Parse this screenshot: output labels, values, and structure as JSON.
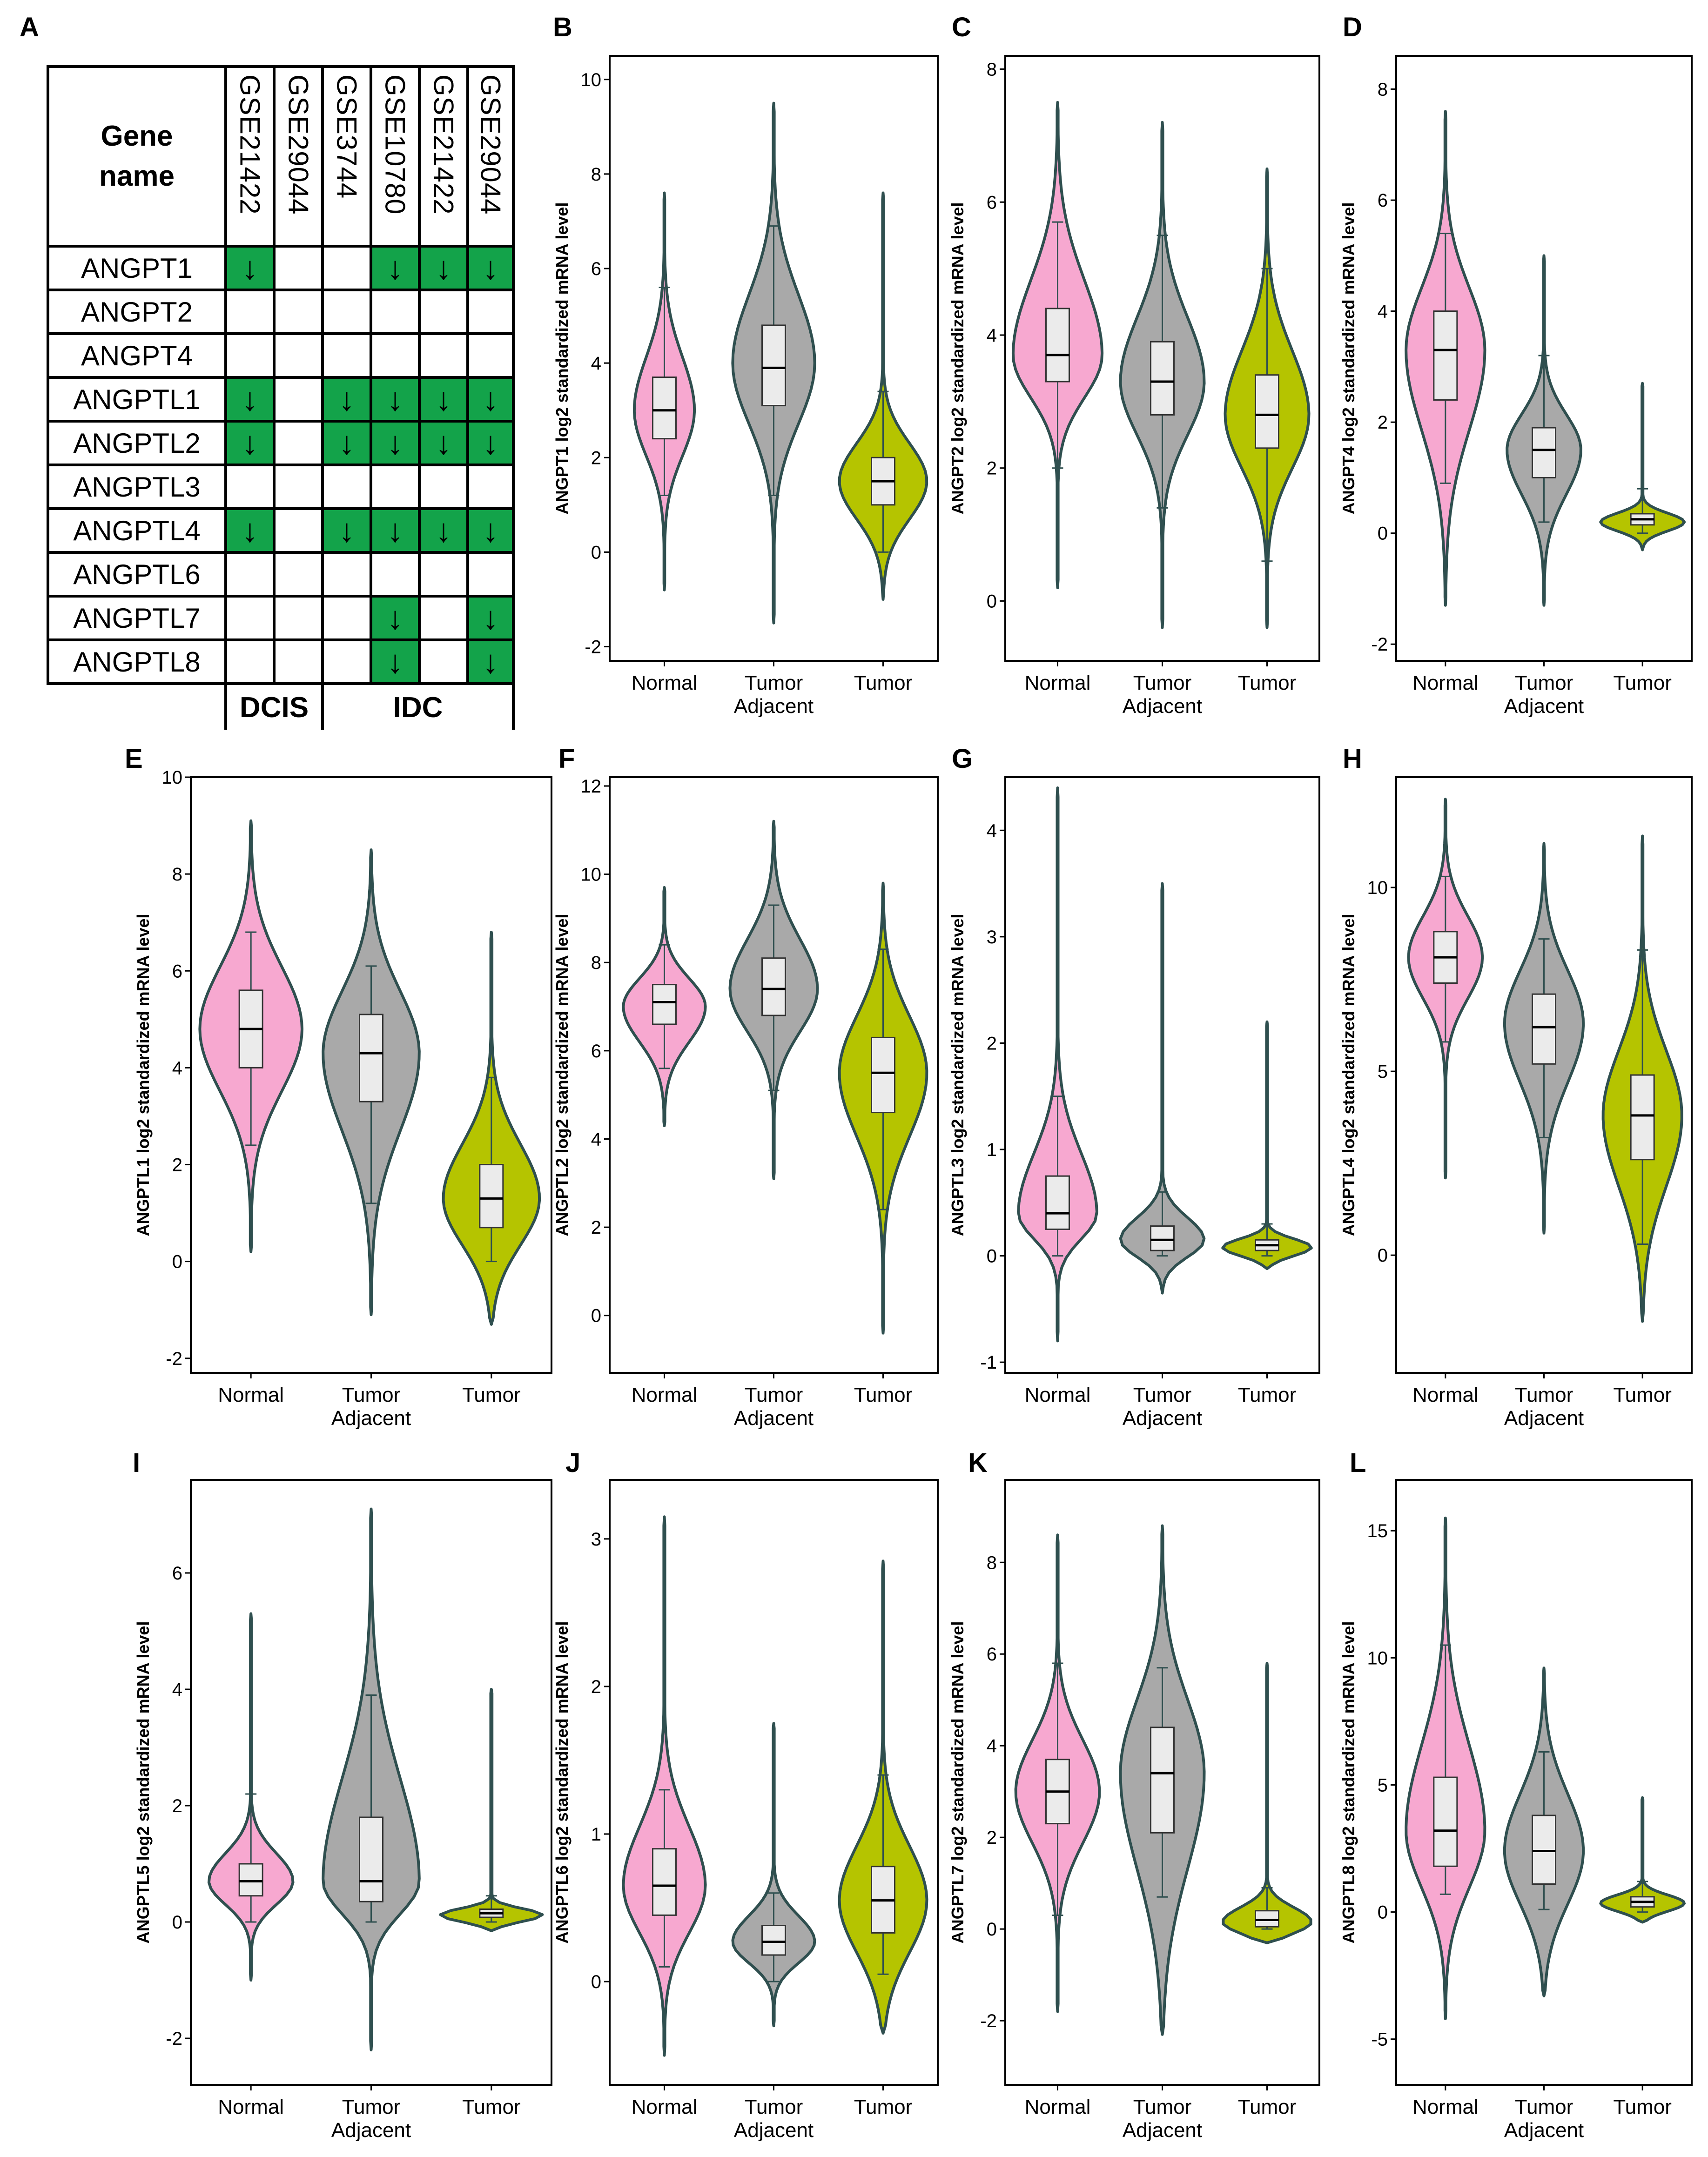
{
  "panel_a": {
    "label": "A",
    "gene_header": "Gene\nname",
    "datasets": [
      "GSE21422",
      "GSE29044",
      "GSE3744",
      "GSE10780",
      "GSE21422",
      "GSE29044"
    ],
    "groups": [
      {
        "label": "DCIS",
        "span": 2
      },
      {
        "label": "IDC",
        "span": 4
      }
    ],
    "arrow_symbol": "↓",
    "highlight_color": "#13a34a",
    "rows": [
      {
        "gene": "ANGPT1",
        "down": [
          true,
          false,
          false,
          true,
          true,
          true
        ]
      },
      {
        "gene": "ANGPT2",
        "down": [
          false,
          false,
          false,
          false,
          false,
          false
        ]
      },
      {
        "gene": "ANGPT4",
        "down": [
          false,
          false,
          false,
          false,
          false,
          false
        ]
      },
      {
        "gene": "ANGPTL1",
        "down": [
          true,
          false,
          true,
          true,
          true,
          true
        ]
      },
      {
        "gene": "ANGPTL2",
        "down": [
          true,
          false,
          true,
          true,
          true,
          true
        ]
      },
      {
        "gene": "ANGPTL3",
        "down": [
          false,
          false,
          false,
          false,
          false,
          false
        ]
      },
      {
        "gene": "ANGPTL4",
        "down": [
          true,
          false,
          true,
          true,
          true,
          true
        ]
      },
      {
        "gene": "ANGPTL6",
        "down": [
          false,
          false,
          false,
          false,
          false,
          false
        ]
      },
      {
        "gene": "ANGPTL7",
        "down": [
          false,
          false,
          false,
          true,
          false,
          true
        ]
      },
      {
        "gene": "ANGPTL8",
        "down": [
          false,
          false,
          false,
          true,
          false,
          true
        ]
      }
    ]
  },
  "colors": {
    "Normal": "#f7a8d0",
    "Tumor Adjacent": "#a9a9a9",
    "Tumor": "#b5c400",
    "outline": "#2f4f4f",
    "box_fill": "#ebebeb"
  },
  "chart_data": [
    {
      "label": "B",
      "type": "violin",
      "ylabel": "ANGPT1  log2 standardized mRNA level",
      "ylim": [
        -2.3,
        10.5
      ],
      "ticks": [
        -2,
        0,
        2,
        4,
        6,
        8,
        10
      ],
      "categories": [
        {
          "line1": "Normal",
          "line2": ""
        },
        {
          "line1": "Tumor",
          "line2": "Adjacent"
        },
        {
          "line1": "Tumor",
          "line2": ""
        }
      ],
      "series": [
        {
          "name": "Normal",
          "min": -0.8,
          "max": 7.6,
          "q1": 2.4,
          "median": 3.0,
          "q3": 3.7,
          "wlo": 1.2,
          "whi": 5.6,
          "peak": 3.0,
          "width": 0.55
        },
        {
          "name": "Tumor Adjacent",
          "min": -1.5,
          "max": 9.5,
          "q1": 3.1,
          "median": 3.9,
          "q3": 4.8,
          "wlo": 1.2,
          "whi": 6.9,
          "peak": 4.0,
          "width": 0.75
        },
        {
          "name": "Tumor",
          "min": -1.0,
          "max": 7.6,
          "q1": 1.0,
          "median": 1.5,
          "q3": 2.0,
          "wlo": 0.0,
          "whi": 3.4,
          "peak": 1.5,
          "width": 0.8
        }
      ]
    },
    {
      "label": "C",
      "type": "violin",
      "ylabel": "ANGPT2  log2 standardized mRNA level",
      "ylim": [
        -0.9,
        8.2
      ],
      "ticks": [
        0,
        2,
        4,
        6,
        8
      ],
      "categories": [
        {
          "line1": "Normal",
          "line2": ""
        },
        {
          "line1": "Tumor",
          "line2": "Adjacent"
        },
        {
          "line1": "Tumor",
          "line2": ""
        }
      ],
      "series": [
        {
          "name": "Normal",
          "min": 0.2,
          "max": 7.5,
          "q1": 3.3,
          "median": 3.7,
          "q3": 4.4,
          "wlo": 2.0,
          "whi": 5.7,
          "peak": 3.7,
          "width": 0.85
        },
        {
          "name": "Tumor Adjacent",
          "min": -0.4,
          "max": 7.2,
          "q1": 2.8,
          "median": 3.3,
          "q3": 3.9,
          "wlo": 1.4,
          "whi": 5.5,
          "peak": 3.3,
          "width": 0.8
        },
        {
          "name": "Tumor",
          "min": -0.4,
          "max": 6.5,
          "q1": 2.3,
          "median": 2.8,
          "q3": 3.4,
          "wlo": 0.6,
          "whi": 5.0,
          "peak": 2.8,
          "width": 0.8
        }
      ]
    },
    {
      "label": "D",
      "type": "violin",
      "ylabel": "ANGPT4  log2 standardized mRNA level",
      "ylim": [
        -2.3,
        8.6
      ],
      "ticks": [
        -2,
        0,
        2,
        4,
        6,
        8
      ],
      "categories": [
        {
          "line1": "Normal",
          "line2": ""
        },
        {
          "line1": "Tumor",
          "line2": "Adjacent"
        },
        {
          "line1": "Tumor",
          "line2": ""
        }
      ],
      "series": [
        {
          "name": "Normal",
          "min": -1.3,
          "max": 7.6,
          "q1": 2.4,
          "median": 3.3,
          "q3": 4.0,
          "wlo": 0.9,
          "whi": 5.4,
          "peak": 3.3,
          "width": 0.8
        },
        {
          "name": "Tumor Adjacent",
          "min": -1.3,
          "max": 5.0,
          "q1": 1.0,
          "median": 1.5,
          "q3": 1.9,
          "wlo": 0.2,
          "whi": 3.2,
          "peak": 1.5,
          "width": 0.75
        },
        {
          "name": "Tumor",
          "min": -0.3,
          "max": 2.7,
          "q1": 0.15,
          "median": 0.25,
          "q3": 0.35,
          "wlo": 0.0,
          "whi": 0.8,
          "peak": 0.2,
          "width": 0.85
        }
      ]
    },
    {
      "label": "E",
      "type": "violin",
      "ylabel": "ANGPTL1  log2 standardized mRNA level",
      "ylim": [
        -2.3,
        10.0
      ],
      "ticks": [
        -2,
        0,
        2,
        4,
        6,
        8,
        10
      ],
      "categories": [
        {
          "line1": "Normal",
          "line2": ""
        },
        {
          "line1": "Tumor",
          "line2": "Adjacent"
        },
        {
          "line1": "Tumor",
          "line2": ""
        }
      ],
      "series": [
        {
          "name": "Normal",
          "min": 0.2,
          "max": 9.1,
          "q1": 4.0,
          "median": 4.8,
          "q3": 5.6,
          "wlo": 2.4,
          "whi": 6.8,
          "peak": 4.8,
          "width": 0.85
        },
        {
          "name": "Tumor Adjacent",
          "min": -1.1,
          "max": 8.5,
          "q1": 3.3,
          "median": 4.3,
          "q3": 5.1,
          "wlo": 1.2,
          "whi": 6.1,
          "peak": 4.3,
          "width": 0.8
        },
        {
          "name": "Tumor",
          "min": -1.3,
          "max": 6.8,
          "q1": 0.7,
          "median": 1.3,
          "q3": 2.0,
          "wlo": 0.0,
          "whi": 3.8,
          "peak": 1.3,
          "width": 0.8
        }
      ]
    },
    {
      "label": "F",
      "type": "violin",
      "ylabel": "ANGPTL2  log2 standardized mRNA level",
      "ylim": [
        -1.3,
        12.2
      ],
      "ticks": [
        0,
        2,
        4,
        6,
        8,
        10,
        12
      ],
      "categories": [
        {
          "line1": "Normal",
          "line2": ""
        },
        {
          "line1": "Tumor",
          "line2": "Adjacent"
        },
        {
          "line1": "Tumor",
          "line2": ""
        }
      ],
      "series": [
        {
          "name": "Normal",
          "min": 4.3,
          "max": 9.7,
          "q1": 6.6,
          "median": 7.1,
          "q3": 7.5,
          "wlo": 5.6,
          "whi": 8.4,
          "peak": 7.0,
          "width": 0.75
        },
        {
          "name": "Tumor Adjacent",
          "min": 3.1,
          "max": 11.2,
          "q1": 6.8,
          "median": 7.4,
          "q3": 8.1,
          "wlo": 5.1,
          "whi": 9.3,
          "peak": 7.4,
          "width": 0.8
        },
        {
          "name": "Tumor",
          "min": -0.4,
          "max": 9.8,
          "q1": 4.6,
          "median": 5.5,
          "q3": 6.3,
          "wlo": 2.4,
          "whi": 8.3,
          "peak": 5.5,
          "width": 0.8
        }
      ]
    },
    {
      "label": "G",
      "type": "violin",
      "ylabel": "ANGPTL3  log2 standardized mRNA level",
      "ylim": [
        -1.1,
        4.5
      ],
      "ticks": [
        -1,
        0,
        1,
        2,
        3,
        4
      ],
      "categories": [
        {
          "line1": "Normal",
          "line2": ""
        },
        {
          "line1": "Tumor",
          "line2": "Adjacent"
        },
        {
          "line1": "Tumor",
          "line2": ""
        }
      ],
      "series": [
        {
          "name": "Normal",
          "min": -0.8,
          "max": 4.4,
          "q1": 0.25,
          "median": 0.4,
          "q3": 0.75,
          "wlo": 0.0,
          "whi": 1.5,
          "peak": 0.4,
          "width": 0.75
        },
        {
          "name": "Tumor Adjacent",
          "min": -0.35,
          "max": 3.5,
          "q1": 0.05,
          "median": 0.15,
          "q3": 0.28,
          "wlo": 0.0,
          "whi": 0.6,
          "peak": 0.15,
          "width": 0.8
        },
        {
          "name": "Tumor",
          "min": -0.12,
          "max": 2.2,
          "q1": 0.05,
          "median": 0.1,
          "q3": 0.15,
          "wlo": 0.0,
          "whi": 0.3,
          "peak": 0.08,
          "width": 0.85
        }
      ]
    },
    {
      "label": "H",
      "type": "violin",
      "ylabel": "ANGPTL4  log2 standardized mRNA level",
      "ylim": [
        -3.2,
        13.0
      ],
      "ticks": [
        0,
        5,
        10
      ],
      "categories": [
        {
          "line1": "Normal",
          "line2": ""
        },
        {
          "line1": "Tumor",
          "line2": "Adjacent"
        },
        {
          "line1": "Tumor",
          "line2": ""
        }
      ],
      "series": [
        {
          "name": "Normal",
          "min": 2.1,
          "max": 12.4,
          "q1": 7.4,
          "median": 8.1,
          "q3": 8.8,
          "wlo": 5.8,
          "whi": 10.3,
          "peak": 8.1,
          "width": 0.75
        },
        {
          "name": "Tumor Adjacent",
          "min": 0.6,
          "max": 11.2,
          "q1": 5.2,
          "median": 6.2,
          "q3": 7.1,
          "wlo": 3.2,
          "whi": 8.6,
          "peak": 6.3,
          "width": 0.8
        },
        {
          "name": "Tumor",
          "min": -1.8,
          "max": 11.4,
          "q1": 2.6,
          "median": 3.8,
          "q3": 4.9,
          "wlo": 0.3,
          "whi": 8.3,
          "peak": 3.8,
          "width": 0.8
        }
      ]
    },
    {
      "label": "I",
      "type": "violin",
      "ylabel": "ANGPTL5  log2 standardized mRNA level",
      "ylim": [
        -2.8,
        7.6
      ],
      "ticks": [
        -2,
        0,
        2,
        4,
        6
      ],
      "categories": [
        {
          "line1": "Normal",
          "line2": ""
        },
        {
          "line1": "Tumor",
          "line2": "Adjacent"
        },
        {
          "line1": "Tumor",
          "line2": ""
        }
      ],
      "series": [
        {
          "name": "Normal",
          "min": -1.0,
          "max": 5.3,
          "q1": 0.45,
          "median": 0.7,
          "q3": 1.0,
          "wlo": 0.0,
          "whi": 2.2,
          "peak": 0.7,
          "width": 0.7
        },
        {
          "name": "Tumor Adjacent",
          "min": -2.2,
          "max": 7.1,
          "q1": 0.35,
          "median": 0.7,
          "q3": 1.8,
          "wlo": 0.0,
          "whi": 3.9,
          "peak": 0.7,
          "width": 0.8
        },
        {
          "name": "Tumor",
          "min": -0.15,
          "max": 4.0,
          "q1": 0.08,
          "median": 0.15,
          "q3": 0.22,
          "wlo": 0.0,
          "whi": 0.45,
          "peak": 0.12,
          "width": 0.85
        }
      ]
    },
    {
      "label": "J",
      "type": "violin",
      "ylabel": "ANGPTL6  log2 standardized mRNA level",
      "ylim": [
        -0.7,
        3.4
      ],
      "ticks": [
        0,
        1,
        2,
        3
      ],
      "categories": [
        {
          "line1": "Normal",
          "line2": ""
        },
        {
          "line1": "Tumor",
          "line2": "Adjacent"
        },
        {
          "line1": "Tumor",
          "line2": ""
        }
      ],
      "series": [
        {
          "name": "Normal",
          "min": -0.5,
          "max": 3.15,
          "q1": 0.45,
          "median": 0.65,
          "q3": 0.9,
          "wlo": 0.1,
          "whi": 1.3,
          "peak": 0.65,
          "width": 0.75
        },
        {
          "name": "Tumor Adjacent",
          "min": -0.3,
          "max": 1.75,
          "q1": 0.18,
          "median": 0.27,
          "q3": 0.38,
          "wlo": 0.0,
          "whi": 0.6,
          "peak": 0.27,
          "width": 0.75
        },
        {
          "name": "Tumor",
          "min": -0.35,
          "max": 2.85,
          "q1": 0.33,
          "median": 0.55,
          "q3": 0.78,
          "wlo": 0.05,
          "whi": 1.4,
          "peak": 0.55,
          "width": 0.8
        }
      ]
    },
    {
      "label": "K",
      "type": "violin",
      "ylabel": "ANGPTL7  log2 standardized mRNA level",
      "ylim": [
        -3.4,
        9.8
      ],
      "ticks": [
        -2,
        0,
        2,
        4,
        6,
        8
      ],
      "categories": [
        {
          "line1": "Normal",
          "line2": ""
        },
        {
          "line1": "Tumor",
          "line2": "Adjacent"
        },
        {
          "line1": "Tumor",
          "line2": ""
        }
      ],
      "series": [
        {
          "name": "Normal",
          "min": -1.8,
          "max": 8.6,
          "q1": 2.3,
          "median": 3.0,
          "q3": 3.7,
          "wlo": 0.3,
          "whi": 5.8,
          "peak": 3.0,
          "width": 0.8
        },
        {
          "name": "Tumor Adjacent",
          "min": -2.3,
          "max": 8.8,
          "q1": 2.1,
          "median": 3.4,
          "q3": 4.4,
          "wlo": 0.7,
          "whi": 5.7,
          "peak": 3.4,
          "width": 0.8
        },
        {
          "name": "Tumor",
          "min": -0.3,
          "max": 5.8,
          "q1": 0.05,
          "median": 0.2,
          "q3": 0.4,
          "wlo": 0.0,
          "whi": 0.9,
          "peak": 0.15,
          "width": 0.85
        }
      ]
    },
    {
      "label": "L",
      "type": "violin",
      "ylabel": "ANGPTL8  log2 standardized mRNA level",
      "ylim": [
        -6.8,
        17.0
      ],
      "ticks": [
        -5,
        0,
        5,
        10,
        15
      ],
      "categories": [
        {
          "line1": "Normal",
          "line2": ""
        },
        {
          "line1": "Tumor",
          "line2": "Adjacent"
        },
        {
          "line1": "Tumor",
          "line2": ""
        }
      ],
      "series": [
        {
          "name": "Normal",
          "min": -4.2,
          "max": 15.5,
          "q1": 1.8,
          "median": 3.2,
          "q3": 5.3,
          "wlo": 0.7,
          "whi": 10.5,
          "peak": 3.2,
          "width": 0.8
        },
        {
          "name": "Tumor Adjacent",
          "min": -3.3,
          "max": 9.6,
          "q1": 1.1,
          "median": 2.4,
          "q3": 3.8,
          "wlo": 0.1,
          "whi": 6.3,
          "peak": 2.4,
          "width": 0.8
        },
        {
          "name": "Tumor",
          "min": -0.4,
          "max": 4.5,
          "q1": 0.2,
          "median": 0.4,
          "q3": 0.6,
          "wlo": 0.0,
          "whi": 1.2,
          "peak": 0.35,
          "width": 0.85
        }
      ]
    }
  ]
}
